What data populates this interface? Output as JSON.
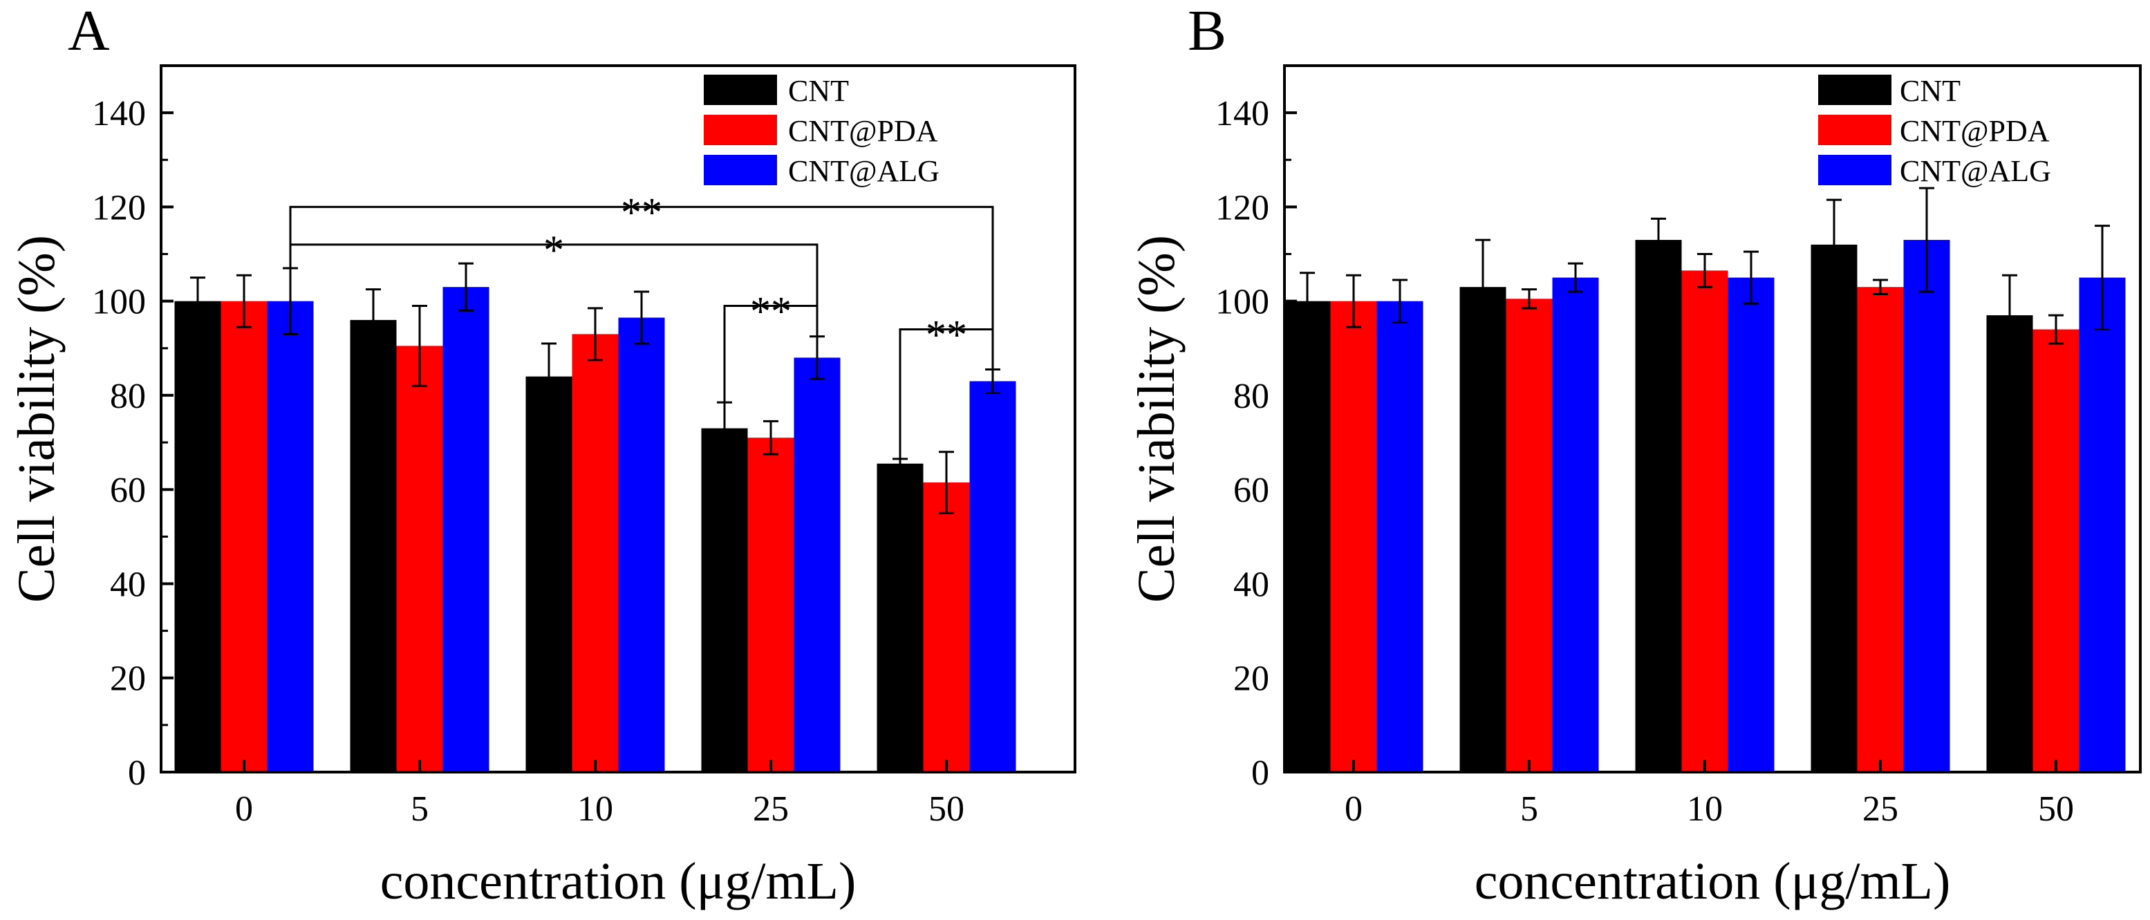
{
  "chart_data": [
    {
      "panel_label": "A",
      "type": "bar",
      "xlabel": "concentration (μg/mL)",
      "ylabel": "Cell viability (%)",
      "ylim": [
        0,
        150
      ],
      "yticks": [
        0,
        20,
        40,
        60,
        80,
        100,
        120,
        140
      ],
      "categories": [
        "0",
        "5",
        "10",
        "25",
        "50"
      ],
      "legend_position": "top-right",
      "series": [
        {
          "name": "CNT",
          "color": "#000000",
          "values": [
            100,
            96,
            84,
            73,
            65.5
          ],
          "errors": [
            5,
            6.5,
            7,
            5.5,
            1
          ]
        },
        {
          "name": "CNT@PDA",
          "color": "#ff0000",
          "values": [
            100,
            90.5,
            93,
            71,
            61.5
          ],
          "errors": [
            5.5,
            8.5,
            5.5,
            3.5,
            6.5
          ]
        },
        {
          "name": "CNT@ALG",
          "color": "#0000ff",
          "values": [
            100,
            103,
            96.5,
            88,
            83
          ],
          "errors": [
            7,
            5,
            5.5,
            4.5,
            2.5
          ]
        }
      ],
      "significance": [
        {
          "label": "**",
          "from": [
            0,
            2
          ],
          "to": [
            4,
            2
          ],
          "level": 120
        },
        {
          "label": "*",
          "from": [
            0,
            2
          ],
          "to": [
            3,
            2
          ],
          "level": 112
        },
        {
          "label": "**",
          "from": [
            3,
            0
          ],
          "to": [
            3,
            2
          ],
          "level": 99
        },
        {
          "label": "**",
          "from": [
            4,
            0
          ],
          "to": [
            4,
            2
          ],
          "level": 94
        }
      ]
    },
    {
      "panel_label": "B",
      "type": "bar",
      "xlabel": "concentration (μg/mL)",
      "ylabel": "Cell viability (%)",
      "ylim": [
        0,
        150
      ],
      "yticks": [
        0,
        20,
        40,
        60,
        80,
        100,
        120,
        140
      ],
      "categories": [
        "0",
        "5",
        "10",
        "25",
        "50"
      ],
      "legend_position": "top-right",
      "series": [
        {
          "name": "CNT",
          "color": "#000000",
          "values": [
            100,
            103,
            113,
            112,
            97
          ],
          "errors": [
            6,
            10,
            4.5,
            9.5,
            8.5
          ]
        },
        {
          "name": "CNT@PDA",
          "color": "#ff0000",
          "values": [
            100,
            100.5,
            106.5,
            103,
            94
          ],
          "errors": [
            5.5,
            2,
            3.5,
            1.5,
            3
          ]
        },
        {
          "name": "CNT@ALG",
          "color": "#0000ff",
          "values": [
            100,
            105,
            105,
            113,
            105
          ],
          "errors": [
            4.5,
            3,
            5.5,
            11,
            11
          ]
        }
      ],
      "significance": []
    }
  ]
}
